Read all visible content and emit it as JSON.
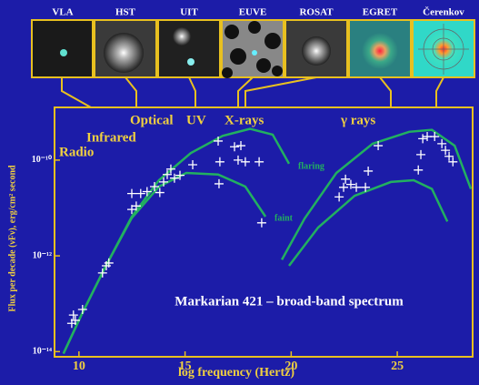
{
  "chart_data": {
    "type": "scatter",
    "title": "Markarian 421 – broad-band spectrum",
    "x_label": "log frequency (Hertz)",
    "y_label": "Flux per decade (νFν), erg/cm² second",
    "log_y": true,
    "xlim": [
      8.85,
      28.55
    ],
    "ylim": [
      7.8e-15,
      1.26e-09
    ],
    "xticks": [
      10,
      15,
      20,
      25
    ],
    "yticks": [
      {
        "value": 1e-14,
        "label": "10⁻¹⁴"
      },
      {
        "value": 1e-12,
        "label": "10⁻¹²"
      },
      {
        "value": 1e-10,
        "label": "10⁻¹⁰"
      }
    ],
    "instruments": [
      "VLA",
      "HST",
      "UIT",
      "EUVE",
      "ROSAT",
      "EGRET",
      "Čerenkov"
    ],
    "bands": [
      "Radio",
      "Infrared",
      "Optical",
      "UV",
      "X-rays",
      "γ rays"
    ],
    "points": {
      "color": "#ffffff",
      "x": [
        9.66,
        9.74,
        9.83,
        10.17,
        11.11,
        11.29,
        11.41,
        12.49,
        12.49,
        12.7,
        12.91,
        13.21,
        13.56,
        13.81,
        13.99,
        14.16,
        14.33,
        14.5,
        14.76,
        15.36,
        16.56,
        16.64,
        16.6,
        17.33,
        17.63,
        17.5,
        17.84,
        18.49,
        18.61,
        22.26,
        22.47,
        22.56,
        22.81,
        23.07,
        23.5,
        23.63,
        24.1,
        25.99,
        26.11,
        26.41,
        26.76,
        27.1,
        27.27,
        27.44,
        27.62,
        26.2
      ],
      "values": [
        3.9e-14,
        5.8e-14,
        4.5e-14,
        7.6e-14,
        4.4e-13,
        6.2e-13,
        7.1e-13,
        2e-11,
        9.3e-12,
        1.1e-11,
        2e-11,
        2.2e-11,
        2.8e-11,
        2.1e-11,
        3.5e-11,
        5e-11,
        6.5e-11,
        4.2e-11,
        4.8e-11,
        8e-11,
        2.5e-10,
        9.2e-11,
        3.2e-11,
        1.9e-10,
        2e-10,
        1e-10,
        9.2e-11,
        9.2e-11,
        4.9e-12,
        1.7e-11,
        2.7e-11,
        4e-11,
        3.1e-11,
        2.7e-11,
        2.7e-11,
        5.9e-11,
        2e-10,
        6.2e-11,
        1.3e-10,
        3.1e-10,
        3.1e-10,
        2.2e-10,
        1.6e-10,
        1.2e-10,
        9.2e-11,
        2.8e-10
      ]
    },
    "series": [
      {
        "name": "flaring",
        "color": "#22b060",
        "x": [
          9.27,
          10.13,
          11.2,
          12.49,
          13.77,
          15.27,
          16.77,
          18.06,
          19.13,
          19.9,
          null,
          19.56,
          20.63,
          22.13,
          23.84,
          25.56,
          26.63,
          27.7,
          28.47
        ],
        "values": [
          9.1e-15,
          6e-14,
          5.4e-13,
          6.6e-12,
          3.8e-11,
          1.4e-10,
          3.2e-10,
          4.5e-10,
          3.4e-10,
          8.4e-11,
          null,
          8.3e-13,
          6e-12,
          5.4e-11,
          2.2e-10,
          3.9e-10,
          4.3e-10,
          2e-10,
          2.5e-11
        ]
      },
      {
        "name": "faint",
        "color": "#22b060",
        "x": [
          9.27,
          10.13,
          11.2,
          12.49,
          13.77,
          15.06,
          16.56,
          17.84,
          18.79,
          null,
          19.9,
          21.27,
          22.99,
          24.7,
          25.77,
          26.63,
          27.36
        ],
        "values": [
          9.1e-15,
          6e-14,
          5.4e-13,
          6.2e-12,
          2.8e-11,
          5.4e-11,
          5e-11,
          2.8e-11,
          6.6e-12,
          null,
          6.2e-13,
          3.9e-12,
          1.8e-11,
          3.5e-11,
          3.8e-11,
          2.5e-11,
          5.2e-12
        ]
      }
    ]
  }
}
